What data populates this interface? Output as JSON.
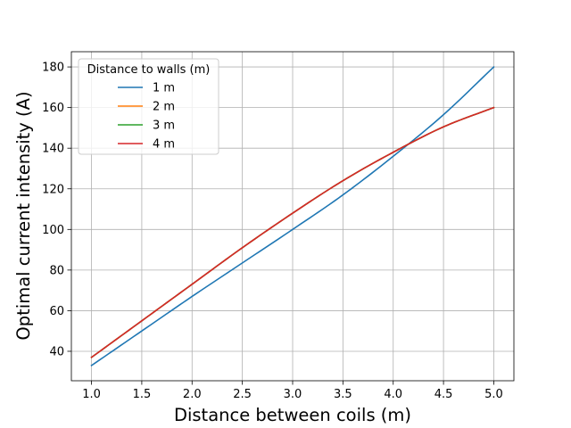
{
  "chart_data": {
    "type": "line",
    "title": "",
    "xlabel": "Distance between coils (m)",
    "ylabel": "Optimal current intensity (A)",
    "xlim": [
      0.8,
      5.2
    ],
    "ylim": [
      25.5,
      187.5
    ],
    "x_ticks": [
      1.0,
      1.5,
      2.0,
      2.5,
      3.0,
      3.5,
      4.0,
      4.5,
      5.0
    ],
    "x_tick_labels": [
      "1.0",
      "1.5",
      "2.0",
      "2.5",
      "3.0",
      "3.5",
      "4.0",
      "4.5",
      "5.0"
    ],
    "y_ticks": [
      40,
      60,
      80,
      100,
      120,
      140,
      160,
      180
    ],
    "y_tick_labels": [
      "40",
      "60",
      "80",
      "100",
      "120",
      "140",
      "160",
      "180"
    ],
    "grid": true,
    "legend": {
      "title": "Distance to walls (m)",
      "placement": "top-left"
    },
    "x": [
      1.0,
      1.5,
      2.0,
      2.5,
      3.0,
      3.5,
      4.0,
      4.5,
      5.0
    ],
    "series": [
      {
        "name": "1 m",
        "color": "#1f77b4",
        "values": [
          33,
          50,
          67,
          83.5,
          100,
          117,
          136,
          156.5,
          180
        ]
      },
      {
        "name": "2 m",
        "color": "#ff7f0e",
        "values": [
          37,
          55,
          73,
          91,
          108,
          124,
          138,
          150.5,
          160
        ]
      },
      {
        "name": "3 m",
        "color": "#2ca02c",
        "values": [
          37,
          55,
          73,
          91,
          108,
          124,
          138,
          150.5,
          160
        ]
      },
      {
        "name": "4 m",
        "color": "#d62728",
        "values": [
          37,
          55,
          73,
          91,
          108,
          124,
          138,
          150.5,
          160
        ]
      }
    ]
  }
}
